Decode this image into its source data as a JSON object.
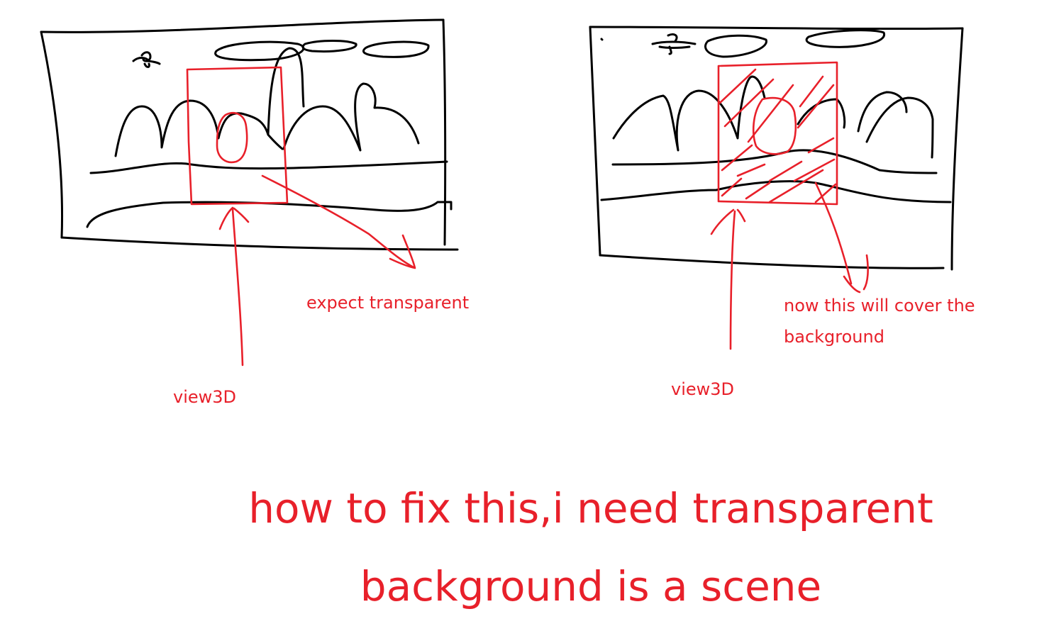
{
  "colors": {
    "ink": "#000000",
    "annotation": "#e8202a",
    "background": "#ffffff"
  },
  "left_panel": {
    "view3d_label": "view3D",
    "arrow_label": "expect transparent"
  },
  "right_panel": {
    "view3d_label": "view3D",
    "arrow_label": "now this will cover the background"
  },
  "question": {
    "line1": "how to fix this,i need transparent",
    "line2": "background is a scene"
  }
}
